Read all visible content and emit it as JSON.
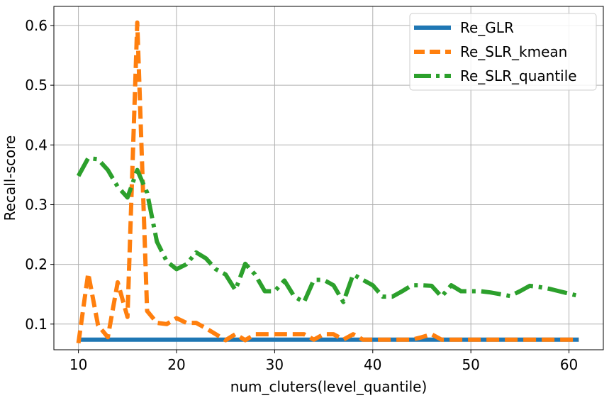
{
  "chart_data": {
    "type": "line",
    "title": "",
    "xlabel": "num_cluters(level_quantile)",
    "ylabel": "Recall-score",
    "xlim": [
      7.5,
      63.5
    ],
    "ylim": [
      0.057,
      0.632
    ],
    "xticks": [
      10,
      20,
      30,
      40,
      50,
      60
    ],
    "yticks": [
      0.1,
      0.2,
      0.3,
      0.4,
      0.5,
      0.6
    ],
    "grid": true,
    "legend_position": "top-right",
    "series": [
      {
        "name": "Re_GLR",
        "color": "#1f77b4",
        "dash": "solid",
        "points": [
          [
            10,
            0.074
          ],
          [
            61,
            0.074
          ]
        ]
      },
      {
        "name": "Re_SLR_kmean",
        "color": "#ff7f0e",
        "dash": "dashed",
        "points": [
          [
            10,
            0.068
          ],
          [
            11,
            0.185
          ],
          [
            12,
            0.098
          ],
          [
            13,
            0.078
          ],
          [
            14,
            0.17
          ],
          [
            15,
            0.112
          ],
          [
            16,
            0.605
          ],
          [
            17,
            0.122
          ],
          [
            18,
            0.102
          ],
          [
            19,
            0.1
          ],
          [
            20,
            0.11
          ],
          [
            21,
            0.102
          ],
          [
            22,
            0.102
          ],
          [
            23,
            0.093
          ],
          [
            24,
            0.083
          ],
          [
            25,
            0.073
          ],
          [
            26,
            0.083
          ],
          [
            27,
            0.073
          ],
          [
            28,
            0.083
          ],
          [
            29,
            0.083
          ],
          [
            30,
            0.083
          ],
          [
            31,
            0.083
          ],
          [
            32,
            0.083
          ],
          [
            33,
            0.083
          ],
          [
            34,
            0.074
          ],
          [
            35,
            0.083
          ],
          [
            36,
            0.083
          ],
          [
            37,
            0.074
          ],
          [
            38,
            0.083
          ],
          [
            39,
            0.074
          ],
          [
            40,
            0.074
          ],
          [
            41,
            0.074
          ],
          [
            42,
            0.074
          ],
          [
            43,
            0.074
          ],
          [
            44,
            0.074
          ],
          [
            45,
            0.078
          ],
          [
            46,
            0.083
          ],
          [
            47,
            0.074
          ],
          [
            48,
            0.074
          ],
          [
            49,
            0.074
          ],
          [
            50,
            0.074
          ],
          [
            51,
            0.074
          ],
          [
            52,
            0.074
          ],
          [
            53,
            0.074
          ],
          [
            54,
            0.074
          ],
          [
            55,
            0.074
          ],
          [
            56,
            0.074
          ],
          [
            57,
            0.074
          ],
          [
            58,
            0.074
          ],
          [
            59,
            0.074
          ],
          [
            60,
            0.074
          ],
          [
            61,
            0.074
          ]
        ]
      },
      {
        "name": "Re_SLR_quantile",
        "color": "#2ca02c",
        "dash": "dashdot",
        "points": [
          [
            10,
            0.348
          ],
          [
            11,
            0.378
          ],
          [
            12,
            0.376
          ],
          [
            13,
            0.358
          ],
          [
            14,
            0.33
          ],
          [
            15,
            0.312
          ],
          [
            16,
            0.358
          ],
          [
            17,
            0.32
          ],
          [
            18,
            0.238
          ],
          [
            19,
            0.205
          ],
          [
            20,
            0.192
          ],
          [
            21,
            0.2
          ],
          [
            22,
            0.22
          ],
          [
            23,
            0.21
          ],
          [
            24,
            0.192
          ],
          [
            25,
            0.183
          ],
          [
            26,
            0.157
          ],
          [
            27,
            0.201
          ],
          [
            28,
            0.183
          ],
          [
            29,
            0.155
          ],
          [
            30,
            0.155
          ],
          [
            31,
            0.173
          ],
          [
            32,
            0.146
          ],
          [
            33,
            0.137
          ],
          [
            34,
            0.174
          ],
          [
            35,
            0.174
          ],
          [
            36,
            0.165
          ],
          [
            37,
            0.137
          ],
          [
            38,
            0.183
          ],
          [
            39,
            0.174
          ],
          [
            40,
            0.165
          ],
          [
            41,
            0.146
          ],
          [
            42,
            0.146
          ],
          [
            43,
            0.155
          ],
          [
            44,
            0.165
          ],
          [
            45,
            0.165
          ],
          [
            46,
            0.164
          ],
          [
            47,
            0.146
          ],
          [
            48,
            0.165
          ],
          [
            49,
            0.155
          ],
          [
            50,
            0.155
          ],
          [
            51,
            0.155
          ],
          [
            52,
            0.153
          ],
          [
            53,
            0.15
          ],
          [
            54,
            0.147
          ],
          [
            55,
            0.155
          ],
          [
            56,
            0.164
          ],
          [
            57,
            0.162
          ],
          [
            58,
            0.159
          ],
          [
            59,
            0.155
          ],
          [
            60,
            0.151
          ],
          [
            61,
            0.147
          ]
        ]
      }
    ]
  }
}
